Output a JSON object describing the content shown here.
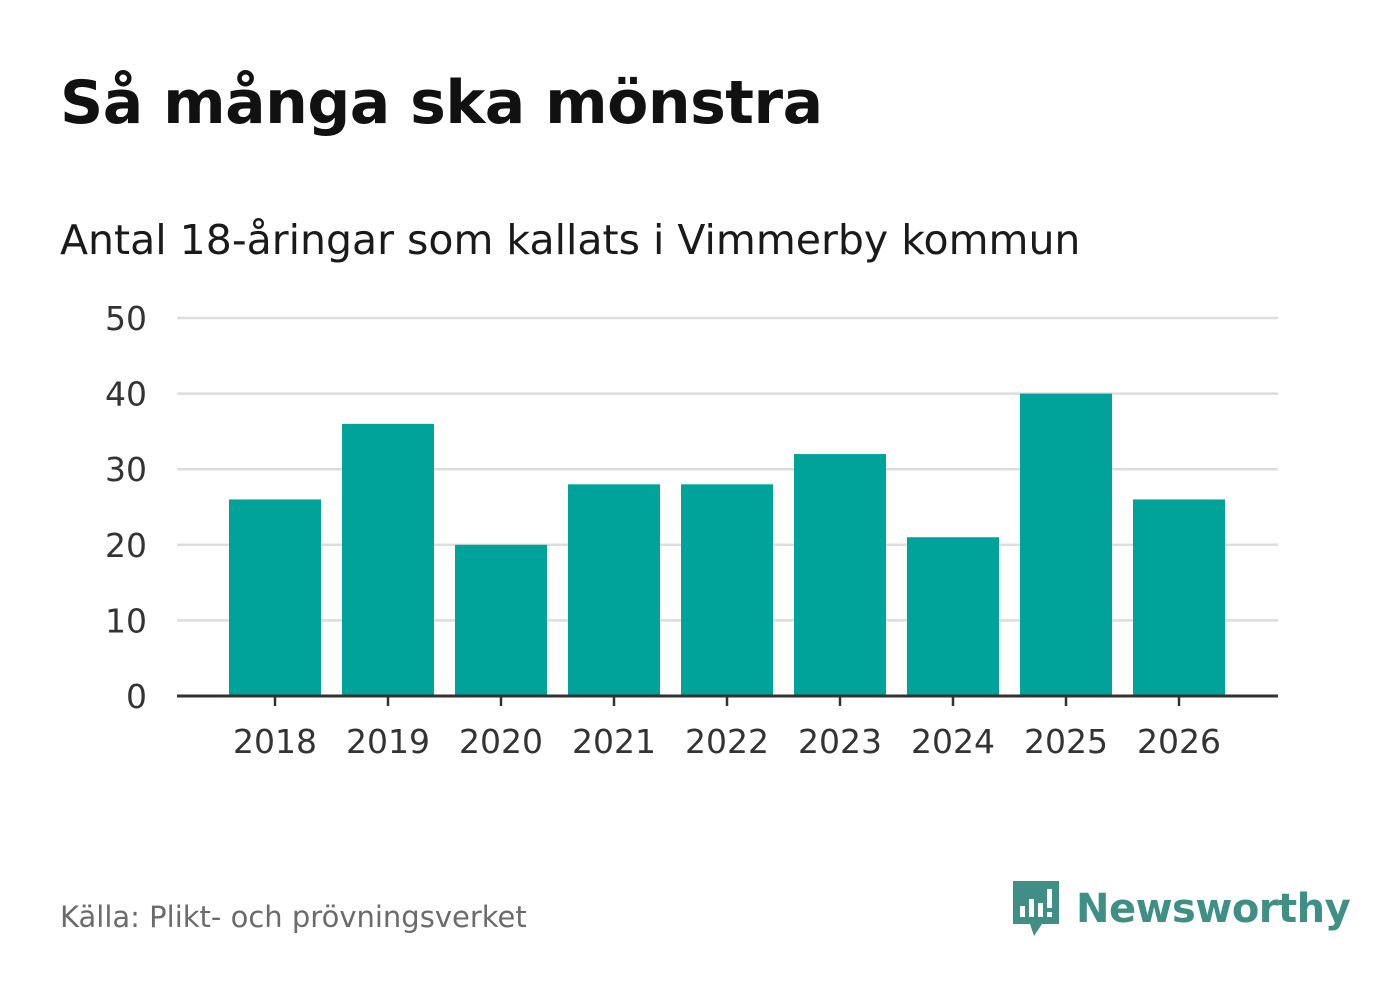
{
  "title": "Så många ska mönstra",
  "subtitle": "Antal 18-åringar som kallats i Vimmerby kommun",
  "source": "Källa: Plikt- och prövningsverket",
  "brand": {
    "name": "Newsworthy",
    "icon": "newsworthy-logo-icon",
    "color": "#3f8f86"
  },
  "chart_data": {
    "type": "bar",
    "title": "Så många ska mönstra",
    "subtitle": "Antal 18-åringar som kallats i Vimmerby kommun",
    "xlabel": "",
    "ylabel": "",
    "categories": [
      "2018",
      "2019",
      "2020",
      "2021",
      "2022",
      "2023",
      "2024",
      "2025",
      "2026"
    ],
    "values": [
      26,
      36,
      20,
      28,
      28,
      32,
      21,
      40,
      26
    ],
    "ylim": [
      0,
      50
    ],
    "yticks": [
      0,
      10,
      20,
      30,
      40,
      50
    ],
    "grid": true,
    "bar_color": "#00a39a"
  }
}
